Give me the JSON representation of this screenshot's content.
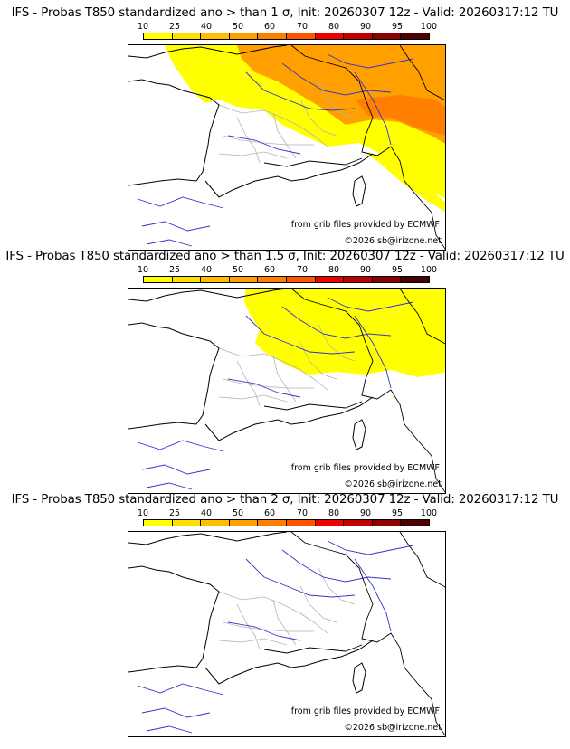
{
  "panels": [
    {
      "title": "IFS - Probas T850  standardized ano > than 1 σ, Init: 20260307 12z - Valid: 20260317:12 TU",
      "overlay_level": "full"
    },
    {
      "title": "IFS - Probas T850  standardized ano > than 1.5 σ, Init: 20260307 12z - Valid: 20260317:12 TU",
      "overlay_level": "partial"
    },
    {
      "title": "IFS - Probas T850  standardized ano > than 2 σ, Init: 20260307 12z - Valid: 20260317:12 TU",
      "overlay_level": "none"
    }
  ],
  "colorbar": {
    "ticks": [
      "10",
      "25",
      "40",
      "50",
      "60",
      "70",
      "80",
      "90",
      "95",
      "100"
    ],
    "colors": [
      "#ffff00",
      "#ffdf00",
      "#ffbf00",
      "#ffa000",
      "#ff8000",
      "#ff5500",
      "#ee0000",
      "#c00000",
      "#8b0000",
      "#4a0000"
    ]
  },
  "credits": {
    "source": "from grib files provided by ECMWF",
    "copyright": "©2026 sb@irizone.net"
  },
  "map_colors": {
    "land_border": "#000000",
    "regions": "#b4b4b4",
    "rivers": "#3333cc",
    "prob_yellow": "#ffff00",
    "prob_orange": "#ffa000",
    "prob_dark_orange": "#ff8000"
  }
}
